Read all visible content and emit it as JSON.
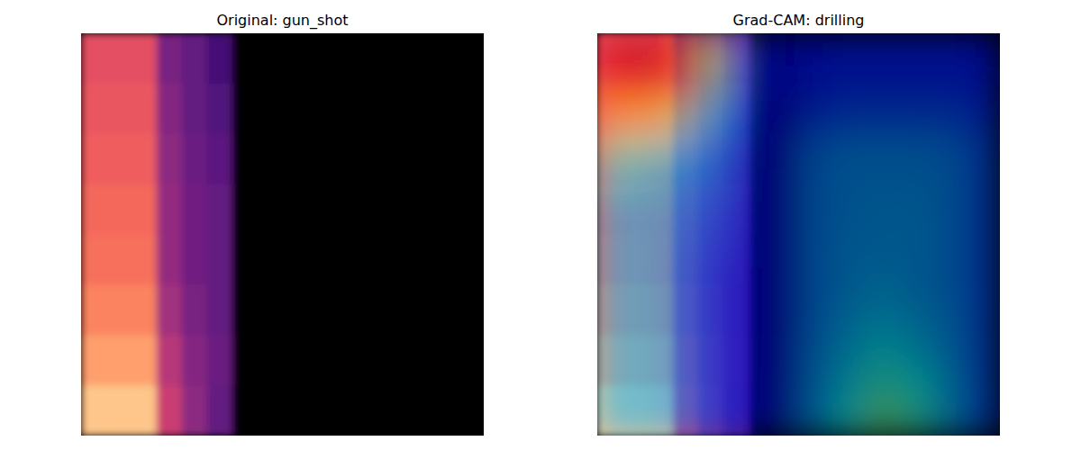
{
  "chart_data": [
    {
      "type": "heatmap",
      "title": "Original: gun_shot",
      "color": "magma",
      "zlim": [
        0,
        1
      ],
      "tick_labels": false,
      "cells": [
        [
          0.62,
          0.62,
          0.62,
          0.35,
          0.3,
          0.22,
          0,
          0,
          0,
          0,
          0,
          0,
          0,
          0,
          0,
          0
        ],
        [
          0.64,
          0.64,
          0.64,
          0.38,
          0.3,
          0.25,
          0,
          0,
          0,
          0,
          0,
          0,
          0,
          0,
          0,
          0
        ],
        [
          0.66,
          0.66,
          0.66,
          0.4,
          0.32,
          0.28,
          0,
          0,
          0,
          0,
          0,
          0,
          0,
          0,
          0,
          0
        ],
        [
          0.68,
          0.68,
          0.68,
          0.42,
          0.33,
          0.3,
          0,
          0,
          0,
          0,
          0,
          0,
          0,
          0,
          0,
          0
        ],
        [
          0.7,
          0.7,
          0.7,
          0.42,
          0.33,
          0.3,
          0,
          0,
          0,
          0,
          0,
          0,
          0,
          0,
          0,
          0
        ],
        [
          0.74,
          0.74,
          0.74,
          0.45,
          0.35,
          0.3,
          0,
          0,
          0,
          0,
          0,
          0,
          0,
          0,
          0,
          0
        ],
        [
          0.8,
          0.8,
          0.8,
          0.5,
          0.38,
          0.32,
          0,
          0,
          0,
          0,
          0,
          0,
          0,
          0,
          0,
          0
        ],
        [
          0.88,
          0.88,
          0.88,
          0.55,
          0.4,
          0.3,
          0,
          0,
          0,
          0,
          0,
          0,
          0,
          0,
          0,
          0
        ]
      ]
    },
    {
      "type": "heatmap",
      "title": "Grad-CAM: drilling",
      "color": "jet",
      "zlim": [
        0,
        1
      ],
      "tick_labels": false,
      "cells": [
        [
          0.92,
          0.95,
          0.88,
          0.6,
          0.15,
          0.1,
          0.14,
          0.15,
          0.15,
          0.15,
          0.15,
          0.14
        ],
        [
          0.88,
          0.9,
          0.8,
          0.5,
          0.15,
          0.1,
          0.15,
          0.16,
          0.16,
          0.16,
          0.16,
          0.15
        ],
        [
          0.7,
          0.68,
          0.55,
          0.35,
          0.12,
          0.08,
          0.18,
          0.2,
          0.2,
          0.2,
          0.2,
          0.17
        ],
        [
          0.45,
          0.42,
          0.35,
          0.28,
          0.1,
          0.08,
          0.24,
          0.26,
          0.26,
          0.26,
          0.25,
          0.2
        ],
        [
          0.35,
          0.33,
          0.3,
          0.25,
          0.1,
          0.08,
          0.25,
          0.27,
          0.27,
          0.27,
          0.26,
          0.2
        ],
        [
          0.3,
          0.3,
          0.28,
          0.22,
          0.1,
          0.08,
          0.25,
          0.27,
          0.28,
          0.28,
          0.26,
          0.2
        ],
        [
          0.3,
          0.3,
          0.26,
          0.2,
          0.1,
          0.08,
          0.25,
          0.28,
          0.28,
          0.28,
          0.26,
          0.2
        ],
        [
          0.3,
          0.3,
          0.25,
          0.18,
          0.1,
          0.08,
          0.25,
          0.28,
          0.3,
          0.28,
          0.26,
          0.2
        ],
        [
          0.3,
          0.3,
          0.25,
          0.18,
          0.1,
          0.08,
          0.25,
          0.3,
          0.32,
          0.3,
          0.27,
          0.2
        ],
        [
          0.3,
          0.3,
          0.25,
          0.18,
          0.1,
          0.08,
          0.26,
          0.32,
          0.36,
          0.33,
          0.28,
          0.2
        ],
        [
          0.3,
          0.3,
          0.25,
          0.18,
          0.1,
          0.08,
          0.27,
          0.35,
          0.42,
          0.38,
          0.3,
          0.2
        ],
        [
          0.3,
          0.3,
          0.25,
          0.18,
          0.1,
          0.08,
          0.28,
          0.38,
          0.48,
          0.42,
          0.3,
          0.2
        ]
      ]
    }
  ]
}
